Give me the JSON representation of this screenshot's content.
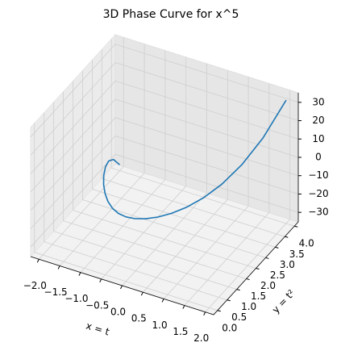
{
  "chart_data": {
    "type": "line3d",
    "title": "3D Phase Curve for x^5",
    "xlabel": "x = t",
    "ylabel": "y = t²",
    "color": "#1f77b4",
    "grid": true,
    "x": [
      -2,
      -1.8,
      -1.6,
      -1.4,
      -1.2,
      -1,
      -0.8,
      -0.6,
      -0.4,
      -0.2,
      0,
      0.2,
      0.4,
      0.6,
      0.8,
      1,
      1.2,
      1.4,
      1.6,
      1.8,
      2
    ],
    "y": [
      4,
      3.24,
      2.56,
      1.96,
      1.44,
      1,
      0.64,
      0.36,
      0.16,
      0.04,
      0,
      0.04,
      0.16,
      0.36,
      0.64,
      1,
      1.44,
      1.96,
      2.56,
      3.24,
      4
    ],
    "z": [
      -32,
      -18.89568,
      -10.48576,
      -5.37824,
      -2.48832,
      -1,
      -0.32768,
      -0.07776,
      -0.01024,
      -0.00032,
      0,
      0.00032,
      0.01024,
      0.07776,
      0.32768,
      1,
      2.48832,
      5.37824,
      10.48576,
      18.89568,
      32
    ],
    "xlim": [
      -2.2,
      2.2
    ],
    "ylim": [
      -0.2,
      4.2
    ],
    "zlim": [
      -35.2,
      35.2
    ],
    "xticks": [
      {
        "value": -2,
        "label": "−2.0"
      },
      {
        "value": -1.5,
        "label": "−1.5"
      },
      {
        "value": -1,
        "label": "−1.0"
      },
      {
        "value": -0.5,
        "label": "−0.5"
      },
      {
        "value": 0,
        "label": "0.0"
      },
      {
        "value": 0.5,
        "label": "0.5"
      },
      {
        "value": 1,
        "label": "1.0"
      },
      {
        "value": 1.5,
        "label": "1.5"
      },
      {
        "value": 2,
        "label": "2.0"
      }
    ],
    "yticks": [
      {
        "value": 0,
        "label": "0.0"
      },
      {
        "value": 0.5,
        "label": "0.5"
      },
      {
        "value": 1,
        "label": "1.0"
      },
      {
        "value": 1.5,
        "label": "1.5"
      },
      {
        "value": 2,
        "label": "2.0"
      },
      {
        "value": 2.5,
        "label": "2.5"
      },
      {
        "value": 3,
        "label": "3.0"
      },
      {
        "value": 3.5,
        "label": "3.5"
      },
      {
        "value": 4,
        "label": "4.0"
      }
    ],
    "zticks": [
      {
        "value": -30,
        "label": "−30"
      },
      {
        "value": -20,
        "label": "−20"
      },
      {
        "value": -10,
        "label": "−10"
      },
      0,
      10,
      20,
      30
    ]
  }
}
